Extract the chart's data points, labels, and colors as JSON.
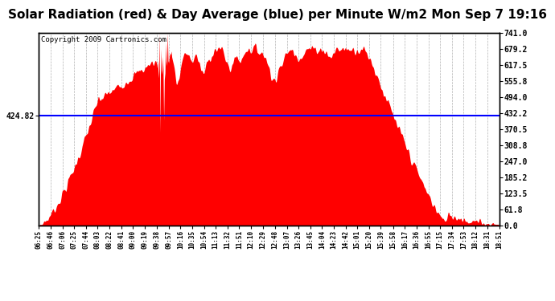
{
  "title": "Solar Radiation (red) & Day Average (blue) per Minute W/m2 Mon Sep 7 19:16",
  "copyright": "Copyright 2009 Cartronics.com",
  "day_average": 424.82,
  "ylim": [
    0.0,
    741.0
  ],
  "yticks": [
    0.0,
    61.8,
    123.5,
    185.2,
    247.0,
    308.8,
    370.5,
    432.2,
    494.0,
    555.8,
    617.5,
    679.2,
    741.0
  ],
  "plot_bg_color": "#ffffff",
  "fill_color": "red",
  "line_color": "blue",
  "title_fontsize": 11,
  "copyright_fontsize": 6.5,
  "xtick_fontsize": 5.5,
  "ytick_fontsize": 7,
  "x_labels": [
    "06:25",
    "06:46",
    "07:06",
    "07:25",
    "07:44",
    "08:03",
    "08:22",
    "08:41",
    "09:00",
    "09:19",
    "09:38",
    "09:57",
    "10:16",
    "10:35",
    "10:54",
    "11:13",
    "11:32",
    "11:51",
    "12:10",
    "12:29",
    "12:48",
    "13:07",
    "13:26",
    "13:45",
    "14:04",
    "14:23",
    "14:42",
    "15:01",
    "15:20",
    "15:39",
    "15:58",
    "16:17",
    "16:36",
    "16:55",
    "17:15",
    "17:34",
    "17:53",
    "18:12",
    "18:31",
    "18:51"
  ]
}
